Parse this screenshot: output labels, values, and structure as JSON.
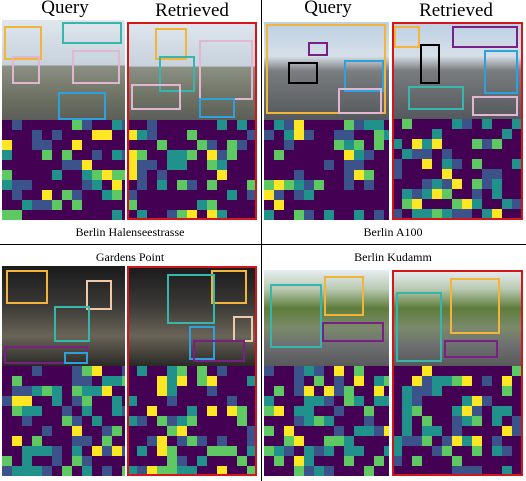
{
  "header": {
    "query_label": "Query",
    "retrieved_label": "Retrieved"
  },
  "examples": [
    {
      "name": "Berlin Halenseestrasse"
    },
    {
      "name": "Berlin A100"
    },
    {
      "name": "Gardens Point"
    },
    {
      "name": "Berlin Kudamm"
    }
  ],
  "colors": {
    "retrieved_frame": "#d4161b",
    "heatmap": [
      "#440154",
      "#3b528b",
      "#21918c",
      "#5ec962",
      "#fde725"
    ],
    "boxes": [
      "#f2b53a",
      "#37b6ad",
      "#e0b6d0",
      "#2ea0dc",
      "#7a1f86",
      "#000000"
    ]
  }
}
